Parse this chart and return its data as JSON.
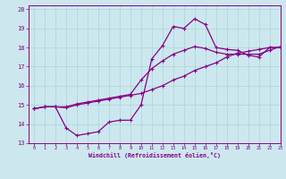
{
  "xlabel": "Windchill (Refroidissement éolien,°C)",
  "xlim": [
    -0.5,
    23
  ],
  "ylim": [
    13,
    20.2
  ],
  "yticks": [
    13,
    14,
    15,
    16,
    17,
    18,
    19,
    20
  ],
  "xticks": [
    0,
    1,
    2,
    3,
    4,
    5,
    6,
    7,
    8,
    9,
    10,
    11,
    12,
    13,
    14,
    15,
    16,
    17,
    18,
    19,
    20,
    21,
    22,
    23
  ],
  "bg_color": "#cce8ee",
  "grid_color": "#aad4dc",
  "line_color": "#880088",
  "markersize": 2.2,
  "linewidth": 0.9,
  "x": [
    0,
    1,
    2,
    3,
    4,
    5,
    6,
    7,
    8,
    9,
    10,
    11,
    12,
    13,
    14,
    15,
    16,
    17,
    18,
    19,
    20,
    21,
    22,
    23
  ],
  "series1_y": [
    14.8,
    14.9,
    14.9,
    13.8,
    13.4,
    13.5,
    13.6,
    14.1,
    14.2,
    14.2,
    15.0,
    17.4,
    18.1,
    19.1,
    19.0,
    19.5,
    19.2,
    18.0,
    17.9,
    17.85,
    17.6,
    17.5,
    18.0,
    18.0
  ],
  "series2_y": [
    14.8,
    14.9,
    14.9,
    14.85,
    15.0,
    15.1,
    15.2,
    15.3,
    15.4,
    15.5,
    15.6,
    15.8,
    16.0,
    16.3,
    16.5,
    16.8,
    17.0,
    17.2,
    17.5,
    17.7,
    17.8,
    17.9,
    18.0,
    18.0
  ],
  "series3_y": [
    14.8,
    14.9,
    14.9,
    14.9,
    15.05,
    15.15,
    15.25,
    15.35,
    15.45,
    15.55,
    16.3,
    16.9,
    17.3,
    17.65,
    17.85,
    18.05,
    17.95,
    17.75,
    17.65,
    17.65,
    17.65,
    17.65,
    17.85,
    18.05
  ]
}
